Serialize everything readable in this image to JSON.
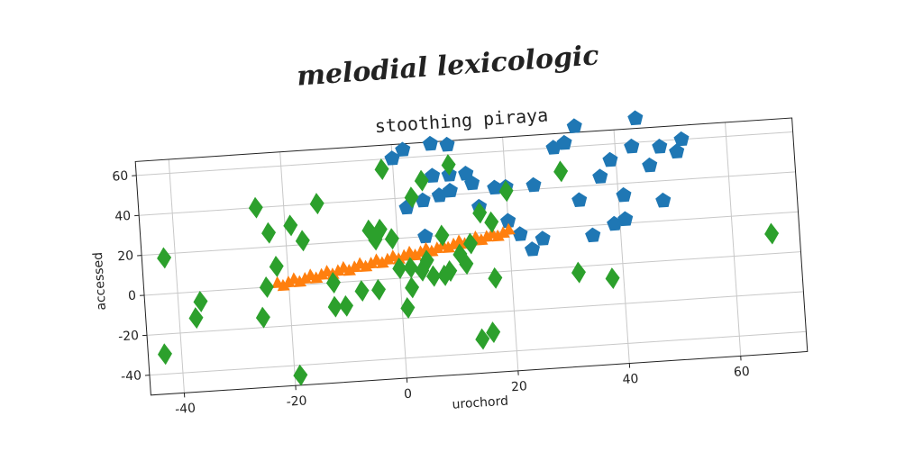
{
  "chart_data": {
    "type": "scatter",
    "title": "melodial lexicologic",
    "subtitle": "stoothing piraya",
    "x_label": "urochord",
    "y_label": "accessed",
    "xlim": [
      -46,
      72
    ],
    "ylim": [
      -50,
      67
    ],
    "xticks": [
      -40,
      -20,
      0,
      20,
      40,
      60
    ],
    "yticks": [
      -40,
      -20,
      0,
      20,
      40,
      60
    ],
    "grid": true,
    "series": [
      {
        "color": "#1f77b4",
        "marker": "pentagon",
        "x": [
          0,
          2,
          7,
          10,
          7,
          10,
          13,
          8,
          10,
          14,
          2,
          5,
          20,
          25,
          31,
          33,
          44,
          29,
          43,
          48,
          52,
          51,
          39,
          46,
          37,
          41,
          33,
          48,
          20,
          22,
          26,
          24,
          35,
          39,
          41,
          5,
          15,
          18
        ],
        "values": [
          60,
          64,
          66,
          65,
          50,
          50,
          50,
          40,
          42,
          45,
          35,
          38,
          42,
          42,
          62,
          70,
          72,
          60,
          58,
          57,
          60,
          54,
          52,
          48,
          44,
          34,
          33,
          30,
          25,
          18,
          15,
          10,
          15,
          20,
          22,
          20,
          33,
          42
        ]
      },
      {
        "color": "#ff7f0e",
        "marker": "triangle",
        "x": [
          -22,
          -21,
          -20,
          -19,
          -18,
          -17,
          -16,
          -15,
          -14,
          -13,
          -12,
          -11,
          -10,
          -9,
          -8,
          -7,
          -6,
          -5,
          -4,
          -3,
          -2,
          -1,
          0,
          1,
          2,
          3,
          4,
          5,
          6,
          7,
          8,
          9,
          10,
          11,
          12,
          13,
          14,
          15,
          16,
          17,
          18,
          19,
          20
        ],
        "values": [
          2,
          0.4,
          1.9,
          3.4,
          1.8,
          3.2,
          4.7,
          3.1,
          4.6,
          6,
          4.5,
          6,
          7.4,
          5.8,
          7.3,
          8.8,
          7.2,
          8.6,
          10.1,
          8.5,
          10,
          11.4,
          9.9,
          11.3,
          12.8,
          11.2,
          12.7,
          14.1,
          12.6,
          14,
          15.5,
          13.9,
          15.4,
          16.8,
          15.3,
          16.7,
          18.2,
          16.6,
          18.1,
          19.5,
          18,
          19.45,
          20.9
        ]
      },
      {
        "color": "#2ca02c",
        "marker": "diamond",
        "x": [
          -42,
          -43,
          -37,
          -36,
          -25,
          -23,
          -19,
          -17,
          -14,
          -24,
          -25,
          -22,
          -12,
          -12,
          -10,
          -7,
          -4,
          -4,
          -3,
          -2,
          -5,
          -1,
          0,
          1,
          2,
          3,
          5,
          8,
          10,
          11,
          12,
          14,
          16,
          17,
          15,
          17,
          20,
          30,
          32,
          38,
          67,
          -19,
          4,
          6,
          8,
          9,
          2,
          5,
          13
        ],
        "values": [
          18,
          -30,
          -13,
          -5,
          40,
          27,
          30,
          22,
          40,
          0,
          -15,
          10,
          0,
          -12,
          -12,
          -5,
          -5,
          20,
          25,
          55,
          25,
          20,
          5,
          -15,
          -5,
          40,
          48,
          20,
          55,
          10,
          5,
          -33,
          -30,
          -3,
          30,
          25,
          40,
          48,
          -3,
          -7,
          10,
          -45,
          3,
          0,
          0,
          2,
          5,
          8,
          15
        ]
      }
    ]
  }
}
